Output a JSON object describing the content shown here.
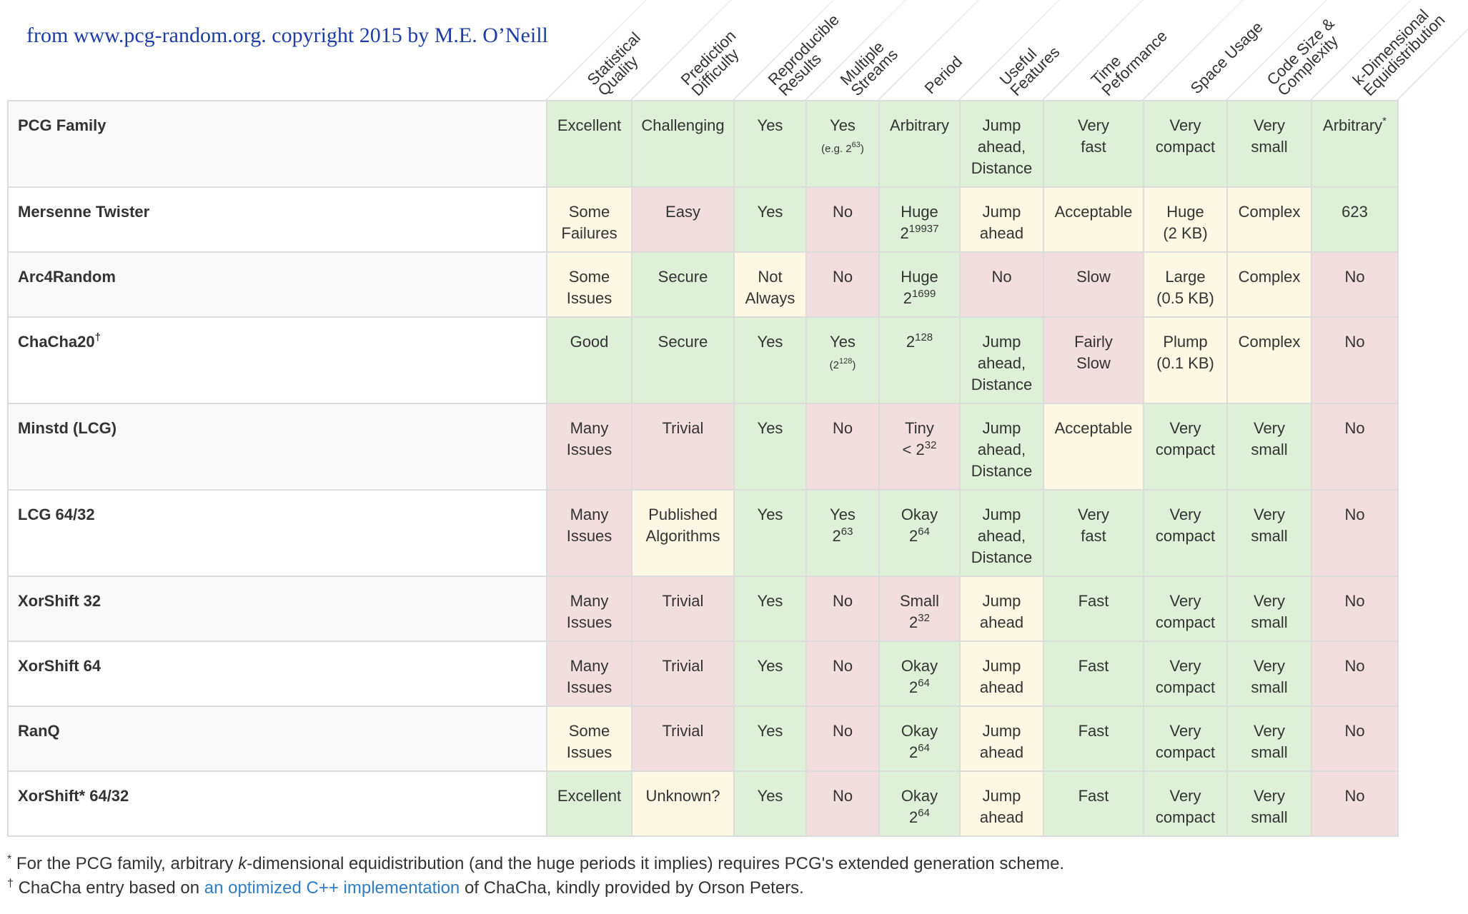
{
  "credit": "from www.pcg-random.org. copyright 2015 by M.E. O’Neill",
  "columns": [
    {
      "key": "statistical-quality",
      "lines": [
        "Statistical",
        "Quality"
      ]
    },
    {
      "key": "prediction-difficulty",
      "lines": [
        "Prediction",
        "Difficulty"
      ]
    },
    {
      "key": "reproducible-results",
      "lines": [
        "Reproducible",
        "Results"
      ]
    },
    {
      "key": "multiple-streams",
      "lines": [
        "Multiple",
        "Streams"
      ]
    },
    {
      "key": "period",
      "lines": [
        "Period"
      ]
    },
    {
      "key": "useful-features",
      "lines": [
        "Useful",
        "Features"
      ]
    },
    {
      "key": "time-performance",
      "lines": [
        "Time",
        "Peformance"
      ]
    },
    {
      "key": "space-usage",
      "lines": [
        "Space Usage"
      ]
    },
    {
      "key": "code-size-complexity",
      "lines": [
        "Code Size &",
        "Complexity"
      ]
    },
    {
      "key": "k-dimensional-equidistribution",
      "lines": [
        "k-Dimensional",
        "Equidistribution"
      ]
    }
  ],
  "colors": {
    "green": "#dff0d8",
    "yellow": "#fcf8e3",
    "red": "#f2dede"
  },
  "rows": [
    {
      "name": "PCG Family",
      "cells": [
        {
          "t": "Excellent",
          "c": "g"
        },
        {
          "t": "Challenging",
          "c": "g"
        },
        {
          "t": "Yes",
          "c": "g"
        },
        {
          "t": "Yes",
          "s": "(e.g. 2",
          "ssup": "63",
          "s2": ")",
          "c": "g"
        },
        {
          "t": "Arbitrary",
          "c": "g"
        },
        {
          "t": "Jump\nahead,\nDistance",
          "c": "g"
        },
        {
          "t": "Very\nfast",
          "c": "g"
        },
        {
          "t": "Very\ncompact",
          "c": "g"
        },
        {
          "t": "Very\nsmall",
          "c": "g"
        },
        {
          "t": "Arbitrary",
          "sup": "*",
          "c": "g"
        }
      ]
    },
    {
      "name": "Mersenne Twister",
      "cells": [
        {
          "t": "Some\nFailures",
          "c": "y"
        },
        {
          "t": "Easy",
          "c": "r"
        },
        {
          "t": "Yes",
          "c": "g"
        },
        {
          "t": "No",
          "c": "r"
        },
        {
          "t": "Huge\n2",
          "sup": "19937",
          "c": "g"
        },
        {
          "t": "Jump\nahead",
          "c": "y"
        },
        {
          "t": "Acceptable",
          "c": "y"
        },
        {
          "t": "Huge\n(2 KB)",
          "c": "y"
        },
        {
          "t": "Complex",
          "c": "y"
        },
        {
          "t": "623",
          "c": "g"
        }
      ]
    },
    {
      "name": "Arc4Random",
      "cells": [
        {
          "t": "Some\nIssues",
          "c": "y"
        },
        {
          "t": "Secure",
          "c": "g"
        },
        {
          "t": "Not\nAlways",
          "c": "y"
        },
        {
          "t": "No",
          "c": "r"
        },
        {
          "t": "Huge\n2",
          "sup": "1699",
          "c": "g"
        },
        {
          "t": "No",
          "c": "r"
        },
        {
          "t": "Slow",
          "c": "r"
        },
        {
          "t": "Large\n(0.5 KB)",
          "c": "y"
        },
        {
          "t": "Complex",
          "c": "y"
        },
        {
          "t": "No",
          "c": "r"
        }
      ]
    },
    {
      "name": "ChaCha20",
      "namesup": "†",
      "cells": [
        {
          "t": "Good",
          "c": "g"
        },
        {
          "t": "Secure",
          "c": "g"
        },
        {
          "t": "Yes",
          "c": "g"
        },
        {
          "t": "Yes",
          "s": "(2",
          "ssup": "128",
          "s2": ")",
          "c": "g"
        },
        {
          "t": "2",
          "sup": "128",
          "c": "g"
        },
        {
          "t": "Jump\nahead,\nDistance",
          "c": "g"
        },
        {
          "t": "Fairly\nSlow",
          "c": "r"
        },
        {
          "t": "Plump\n(0.1 KB)",
          "c": "y"
        },
        {
          "t": "Complex",
          "c": "y"
        },
        {
          "t": "No",
          "c": "r"
        }
      ]
    },
    {
      "name": "Minstd (LCG)",
      "cells": [
        {
          "t": "Many\nIssues",
          "c": "r"
        },
        {
          "t": "Trivial",
          "c": "r"
        },
        {
          "t": "Yes",
          "c": "g"
        },
        {
          "t": "No",
          "c": "r"
        },
        {
          "t": "Tiny\n< 2",
          "sup": "32",
          "c": "r"
        },
        {
          "t": "Jump\nahead,\nDistance",
          "c": "g"
        },
        {
          "t": "Acceptable",
          "c": "y"
        },
        {
          "t": "Very\ncompact",
          "c": "g"
        },
        {
          "t": "Very\nsmall",
          "c": "g"
        },
        {
          "t": "No",
          "c": "r"
        }
      ]
    },
    {
      "name": "LCG 64/32",
      "cells": [
        {
          "t": "Many\nIssues",
          "c": "r"
        },
        {
          "t": "Published\nAlgorithms",
          "c": "y"
        },
        {
          "t": "Yes",
          "c": "g"
        },
        {
          "t": "Yes\n2",
          "sup": "63",
          "c": "g"
        },
        {
          "t": "Okay\n2",
          "sup": "64",
          "c": "g"
        },
        {
          "t": "Jump\nahead,\nDistance",
          "c": "g"
        },
        {
          "t": "Very\nfast",
          "c": "g"
        },
        {
          "t": "Very\ncompact",
          "c": "g"
        },
        {
          "t": "Very\nsmall",
          "c": "g"
        },
        {
          "t": "No",
          "c": "r"
        }
      ]
    },
    {
      "name": "XorShift 32",
      "cells": [
        {
          "t": "Many\nIssues",
          "c": "r"
        },
        {
          "t": "Trivial",
          "c": "r"
        },
        {
          "t": "Yes",
          "c": "g"
        },
        {
          "t": "No",
          "c": "r"
        },
        {
          "t": "Small\n2",
          "sup": "32",
          "c": "r"
        },
        {
          "t": "Jump\nahead",
          "c": "y"
        },
        {
          "t": "Fast",
          "c": "g"
        },
        {
          "t": "Very\ncompact",
          "c": "g"
        },
        {
          "t": "Very\nsmall",
          "c": "g"
        },
        {
          "t": "No",
          "c": "r"
        }
      ]
    },
    {
      "name": "XorShift 64",
      "cells": [
        {
          "t": "Many\nIssues",
          "c": "r"
        },
        {
          "t": "Trivial",
          "c": "r"
        },
        {
          "t": "Yes",
          "c": "g"
        },
        {
          "t": "No",
          "c": "r"
        },
        {
          "t": "Okay\n2",
          "sup": "64",
          "c": "g"
        },
        {
          "t": "Jump\nahead",
          "c": "y"
        },
        {
          "t": "Fast",
          "c": "g"
        },
        {
          "t": "Very\ncompact",
          "c": "g"
        },
        {
          "t": "Very\nsmall",
          "c": "g"
        },
        {
          "t": "No",
          "c": "r"
        }
      ]
    },
    {
      "name": "RanQ",
      "cells": [
        {
          "t": "Some\nIssues",
          "c": "y"
        },
        {
          "t": "Trivial",
          "c": "r"
        },
        {
          "t": "Yes",
          "c": "g"
        },
        {
          "t": "No",
          "c": "r"
        },
        {
          "t": "Okay\n2",
          "sup": "64",
          "c": "g"
        },
        {
          "t": "Jump\nahead",
          "c": "y"
        },
        {
          "t": "Fast",
          "c": "g"
        },
        {
          "t": "Very\ncompact",
          "c": "g"
        },
        {
          "t": "Very\nsmall",
          "c": "g"
        },
        {
          "t": "No",
          "c": "r"
        }
      ]
    },
    {
      "name": "XorShift* 64/32",
      "cells": [
        {
          "t": "Excellent",
          "c": "g"
        },
        {
          "t": "Unknown?",
          "c": "y"
        },
        {
          "t": "Yes",
          "c": "g"
        },
        {
          "t": "No",
          "c": "r"
        },
        {
          "t": "Okay\n2",
          "sup": "64",
          "c": "g"
        },
        {
          "t": "Jump\nahead",
          "c": "y"
        },
        {
          "t": "Fast",
          "c": "g"
        },
        {
          "t": "Very\ncompact",
          "c": "g"
        },
        {
          "t": "Very\nsmall",
          "c": "g"
        },
        {
          "t": "No",
          "c": "r"
        }
      ]
    }
  ],
  "footnotes": {
    "star_mark": "*",
    "star_pre": "For the PCG family, arbitrary ",
    "star_em": "k",
    "star_post": "-dimensional equidistribution (and the huge periods it implies) requires PCG's extended generation scheme.",
    "dagger_mark": "†",
    "dagger_pre": "ChaCha entry based on ",
    "dagger_link": "an optimized C++ implementation",
    "dagger_post": " of ChaCha, kindly provided by Orson Peters."
  }
}
